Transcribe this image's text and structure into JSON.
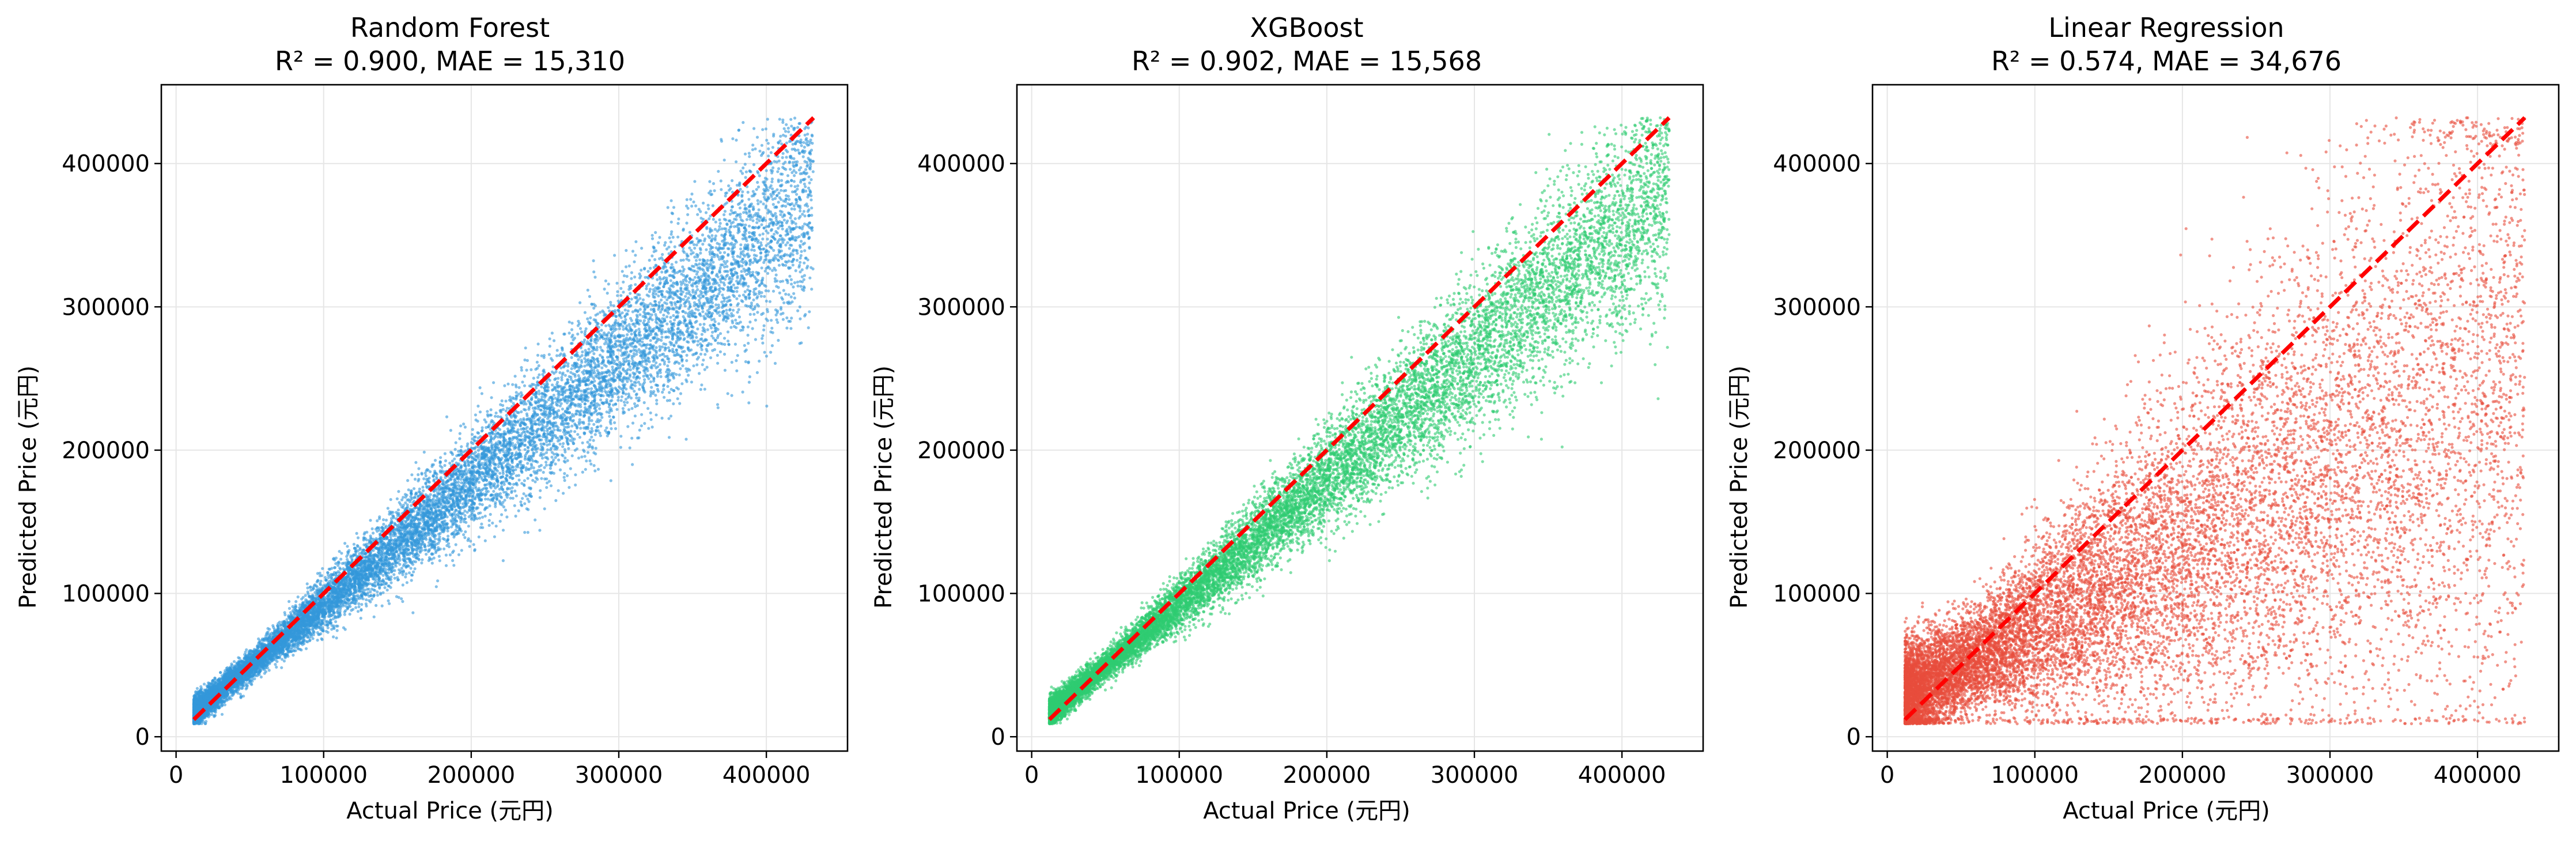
{
  "chart_data": [
    {
      "type": "scatter",
      "title_line1": "Random Forest",
      "title_line2": "R² = 0.900, MAE = 15,310",
      "xlabel": "Actual Price (元円)",
      "ylabel": "Predicted Price (元円)",
      "xlim": [
        -10000,
        455000
      ],
      "ylim": [
        -10000,
        455000
      ],
      "xticks": [
        0,
        100000,
        200000,
        300000,
        400000
      ],
      "yticks": [
        0,
        100000,
        200000,
        300000,
        400000
      ],
      "xtick_labels": [
        "0",
        "100000",
        "200000",
        "300000",
        "400000"
      ],
      "ytick_labels": [
        "0",
        "100000",
        "200000",
        "300000",
        "400000"
      ],
      "grid": true,
      "point_color": "#3498db",
      "point_count": 14000,
      "reference_line": {
        "from": [
          12000,
          12000
        ],
        "to": [
          432000,
          432000
        ],
        "color": "#ff0000",
        "style": "dashed"
      },
      "trend": {
        "slope": 0.86,
        "intercept": 6000,
        "noise_frac": 0.09,
        "noise_min": 5000
      }
    },
    {
      "type": "scatter",
      "title_line1": "XGBoost",
      "title_line2": "R² = 0.902, MAE = 15,568",
      "xlabel": "Actual Price (元円)",
      "ylabel": "Predicted Price (元円)",
      "xlim": [
        -10000,
        455000
      ],
      "ylim": [
        -10000,
        455000
      ],
      "xticks": [
        0,
        100000,
        200000,
        300000,
        400000
      ],
      "yticks": [
        0,
        100000,
        200000,
        300000,
        400000
      ],
      "xtick_labels": [
        "0",
        "100000",
        "200000",
        "300000",
        "400000"
      ],
      "ytick_labels": [
        "0",
        "100000",
        "200000",
        "300000",
        "400000"
      ],
      "grid": true,
      "point_color": "#2ecc71",
      "point_count": 14000,
      "reference_line": {
        "from": [
          12000,
          12000
        ],
        "to": [
          432000,
          432000
        ],
        "color": "#ff0000",
        "style": "dashed"
      },
      "trend": {
        "slope": 0.87,
        "intercept": 6000,
        "noise_frac": 0.09,
        "noise_min": 5000
      }
    },
    {
      "type": "scatter",
      "title_line1": "Linear Regression",
      "title_line2": "R² = 0.574, MAE = 34,676",
      "xlabel": "Actual Price (元円)",
      "ylabel": "Predicted Price (元円)",
      "xlim": [
        -10000,
        455000
      ],
      "ylim": [
        -10000,
        455000
      ],
      "xticks": [
        0,
        100000,
        200000,
        300000,
        400000
      ],
      "yticks": [
        0,
        100000,
        200000,
        300000,
        400000
      ],
      "xtick_labels": [
        "0",
        "100000",
        "200000",
        "300000",
        "400000"
      ],
      "ytick_labels": [
        "0",
        "100000",
        "200000",
        "300000",
        "400000"
      ],
      "grid": true,
      "point_color": "#e74c3c",
      "point_count": 14000,
      "reference_line": {
        "from": [
          12000,
          12000
        ],
        "to": [
          432000,
          432000
        ],
        "color": "#ff0000",
        "style": "dashed"
      },
      "trend": {
        "slope": 0.55,
        "intercept": 22000,
        "noise_frac": 0.3,
        "noise_min": 18000
      }
    }
  ]
}
